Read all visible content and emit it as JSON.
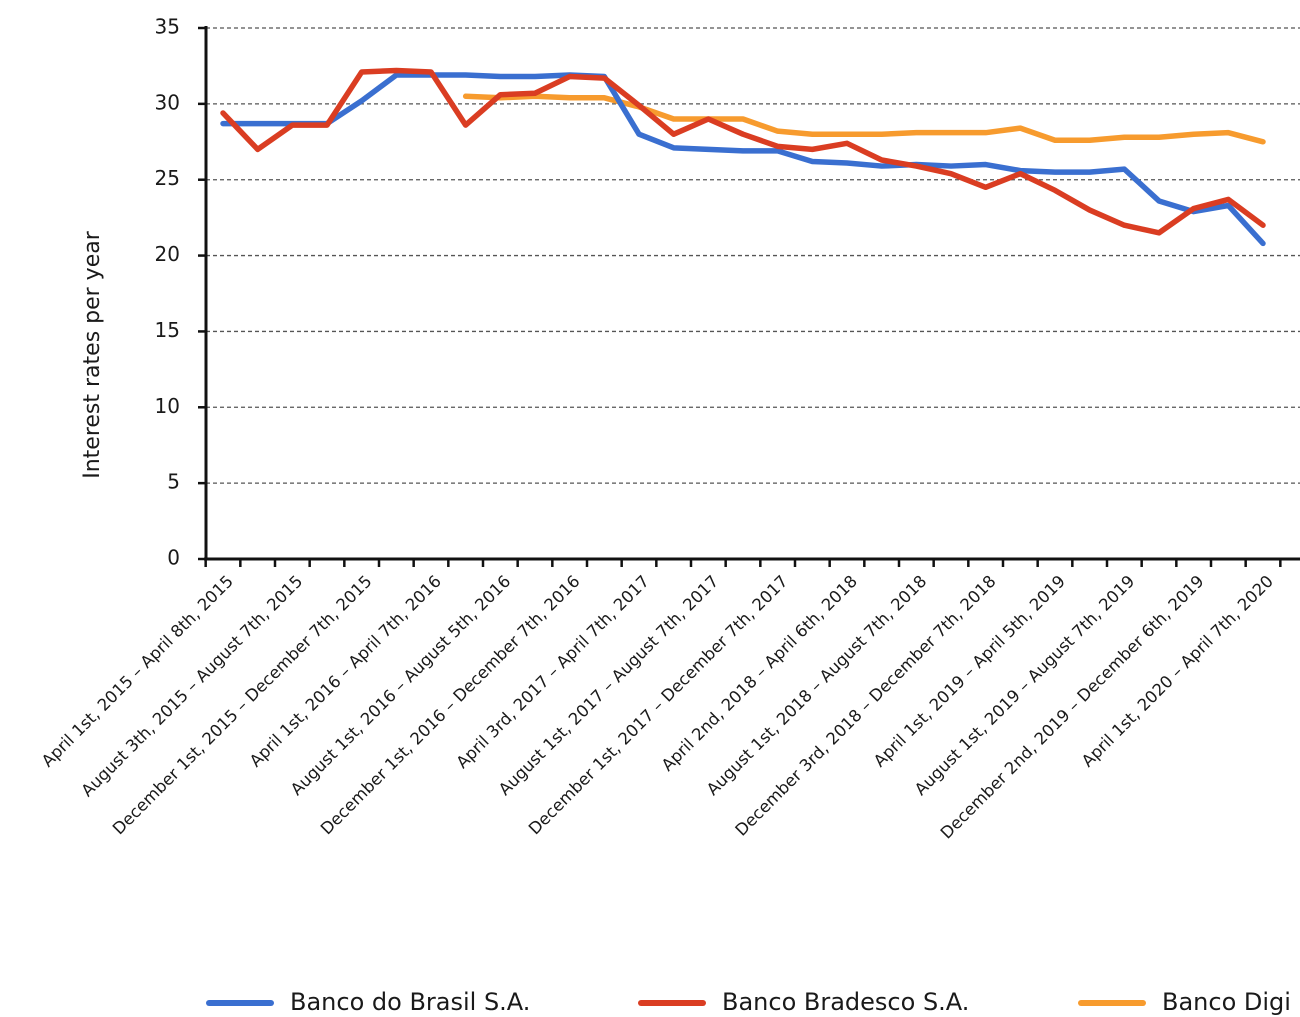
{
  "chart_data": {
    "type": "line",
    "ylabel": "Interest rates per year",
    "xlabel": "",
    "ylim": [
      0,
      35
    ],
    "yticks": [
      0,
      5,
      10,
      15,
      20,
      25,
      30,
      35
    ],
    "grid": true,
    "legend_position": "bottom",
    "x_periods": 31,
    "x_tick_labels": [
      "April 1st, 2015 – April 8th, 2015",
      "August 3th, 2015 – August 7th, 2015",
      "December 1st, 2015 – December 7th, 2015",
      "April 1st, 2016 – April 7th, 2016",
      "August 1st, 2016 – August 5th, 2016",
      "December 1st, 2016 – December 7th, 2016",
      "April 3rd, 2017 – April 7th, 2017",
      "August 1st, 2017 – August 7th, 2017",
      "December 1st, 2017 – December 7th, 2017",
      "April 2nd, 2018 – April 6th, 2018",
      "August 1st, 2018 – August 7th, 2018",
      "December 3rd, 2018 – December 7th, 2018",
      "April 1st, 2019 – April 5th, 2019",
      "August 1st, 2019 – August 7th, 2019",
      "December 2nd, 2019 – December 6th, 2019",
      "April 1st, 2020 – April 7th, 2020"
    ],
    "series": [
      {
        "name": "Banco do Brasil S.A.",
        "color": "#3a6fd0",
        "values": [
          28.7,
          28.7,
          28.7,
          28.7,
          30.2,
          31.9,
          31.9,
          31.9,
          31.8,
          31.8,
          31.9,
          31.8,
          28.0,
          27.1,
          27.0,
          26.9,
          26.9,
          26.2,
          26.1,
          25.9,
          26.0,
          25.9,
          26.0,
          25.6,
          25.5,
          25.5,
          25.7,
          23.6,
          22.9,
          23.3,
          20.8
        ]
      },
      {
        "name": "Banco Bradesco S.A.",
        "color": "#da3d22",
        "values": [
          29.4,
          27.0,
          28.6,
          28.6,
          32.1,
          32.2,
          32.1,
          28.6,
          30.6,
          30.7,
          31.8,
          31.7,
          29.9,
          28.0,
          29.0,
          28.0,
          27.2,
          27.0,
          27.4,
          26.3,
          25.9,
          25.4,
          24.5,
          25.4,
          24.3,
          23.0,
          22.0,
          21.5,
          23.1,
          23.7,
          22.0
        ]
      },
      {
        "name": "Banco Digi",
        "color": "#f79b2e",
        "values": [
          null,
          null,
          null,
          null,
          null,
          null,
          null,
          30.5,
          30.4,
          30.5,
          30.4,
          30.4,
          29.8,
          29.0,
          29.0,
          29.0,
          28.2,
          28.0,
          28.0,
          28.0,
          28.1,
          28.1,
          28.1,
          28.4,
          27.6,
          27.6,
          27.8,
          27.8,
          28.0,
          28.1,
          27.5
        ]
      }
    ]
  }
}
